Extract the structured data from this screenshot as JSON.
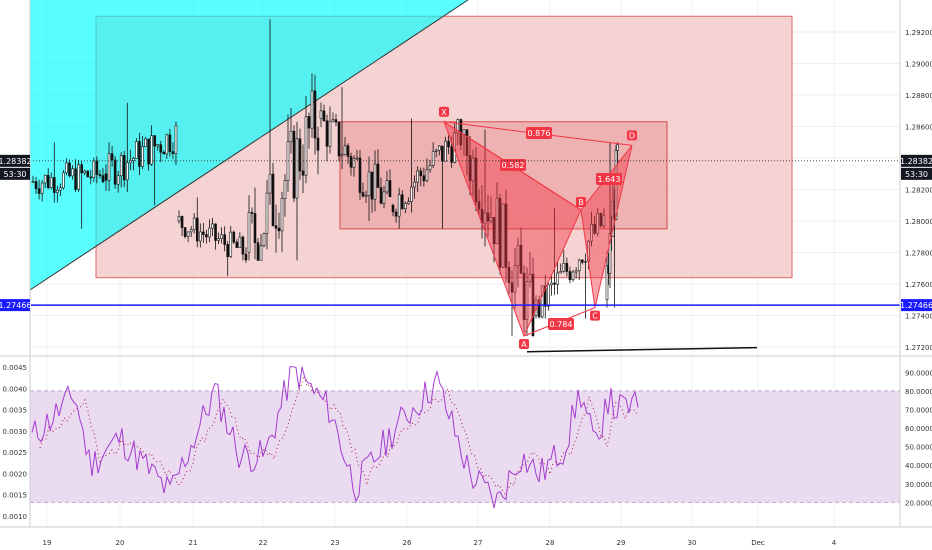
{
  "chart_data": [
    {
      "type": "candlestick",
      "title": "",
      "price_axis": {
        "range": [
          1.2712,
          1.2935
        ],
        "ticks": [
          "1.29200",
          "1.29000",
          "1.28800",
          "1.28600",
          "1.28400",
          "1.28200",
          "1.28000",
          "1.27800",
          "1.27600",
          "1.27400",
          "1.27200"
        ]
      },
      "current_price": {
        "value": "1.28382",
        "countdown": "53:30",
        "color": "#131722"
      },
      "support_line": {
        "value": "1.27466",
        "color": "#1a1aff"
      },
      "x_axis": {
        "labels": [
          "19",
          "20",
          "21",
          "22",
          "23",
          "26",
          "27",
          "28",
          "29",
          "30",
          "Dec",
          "4"
        ]
      },
      "candles_approx": [
        {
          "day": "19",
          "open": 1.2825,
          "high": 1.285,
          "low": 1.2795,
          "close": 1.283
        },
        {
          "day": "20",
          "open": 1.283,
          "high": 1.2875,
          "low": 1.281,
          "close": 1.2855
        },
        {
          "day": "21",
          "open": 1.28,
          "high": 1.2815,
          "low": 1.2765,
          "close": 1.278
        },
        {
          "day": "22",
          "open": 1.278,
          "high": 1.2928,
          "low": 1.2775,
          "close": 1.2865
        },
        {
          "day": "23",
          "open": 1.2865,
          "high": 1.2885,
          "low": 1.28,
          "close": 1.281
        },
        {
          "day": "26",
          "open": 1.281,
          "high": 1.2865,
          "low": 1.2795,
          "close": 1.2855
        },
        {
          "day": "27",
          "open": 1.2855,
          "high": 1.2858,
          "low": 1.2727,
          "close": 1.274
        },
        {
          "day": "28",
          "open": 1.274,
          "high": 1.2808,
          "low": 1.2738,
          "close": 1.28
        },
        {
          "day": "29",
          "open": 1.275,
          "high": 1.285,
          "low": 1.2745,
          "close": 1.2838
        }
      ],
      "harmonic_pattern": {
        "points": [
          {
            "label": "X",
            "day": "26",
            "price": 1.2863
          },
          {
            "label": "A",
            "day": "27",
            "price": 1.2727
          },
          {
            "label": "B",
            "day": "28",
            "price": 1.2807
          },
          {
            "label": "C",
            "day": "28",
            "price": 1.2745
          },
          {
            "label": "D",
            "day": "29",
            "price": 1.2848
          }
        ],
        "ratios": [
          "0.582",
          "0.876",
          "0.784",
          "1.643"
        ],
        "color": "#f23645"
      },
      "zones": [
        {
          "name": "outer-range",
          "top": 1.293,
          "bottom": 1.2764,
          "color": "#f3c4c4"
        },
        {
          "name": "inner-range",
          "top": 1.2863,
          "bottom": 1.2795,
          "color": "#ea9d9d"
        }
      ],
      "trend_channel": {
        "color": "#00ffff"
      },
      "trendline_low": {
        "from_price": 1.2717,
        "to_price": 1.2719
      }
    },
    {
      "type": "line",
      "panel": "indicator",
      "left_axis": {
        "range": [
          0.00088,
          0.0046
        ],
        "ticks": [
          "0.0045",
          "0.0040",
          "0.0035",
          "0.0030",
          "0.0025",
          "0.0020",
          "0.0015",
          "0.0010"
        ]
      },
      "right_axis": {
        "range": [
          10,
          95
        ],
        "ticks": [
          "90.0000",
          "80.0000",
          "70.0000",
          "60.0000",
          "50.0000",
          "40.0000",
          "30.0000",
          "20.0000"
        ]
      },
      "band": {
        "upper": 80,
        "lower": 20,
        "color": "#e6d5ef"
      },
      "series": [
        {
          "style": "solid",
          "color": "#a43bd0"
        },
        {
          "style": "dotted",
          "color": "#b11b3d"
        }
      ]
    }
  ]
}
